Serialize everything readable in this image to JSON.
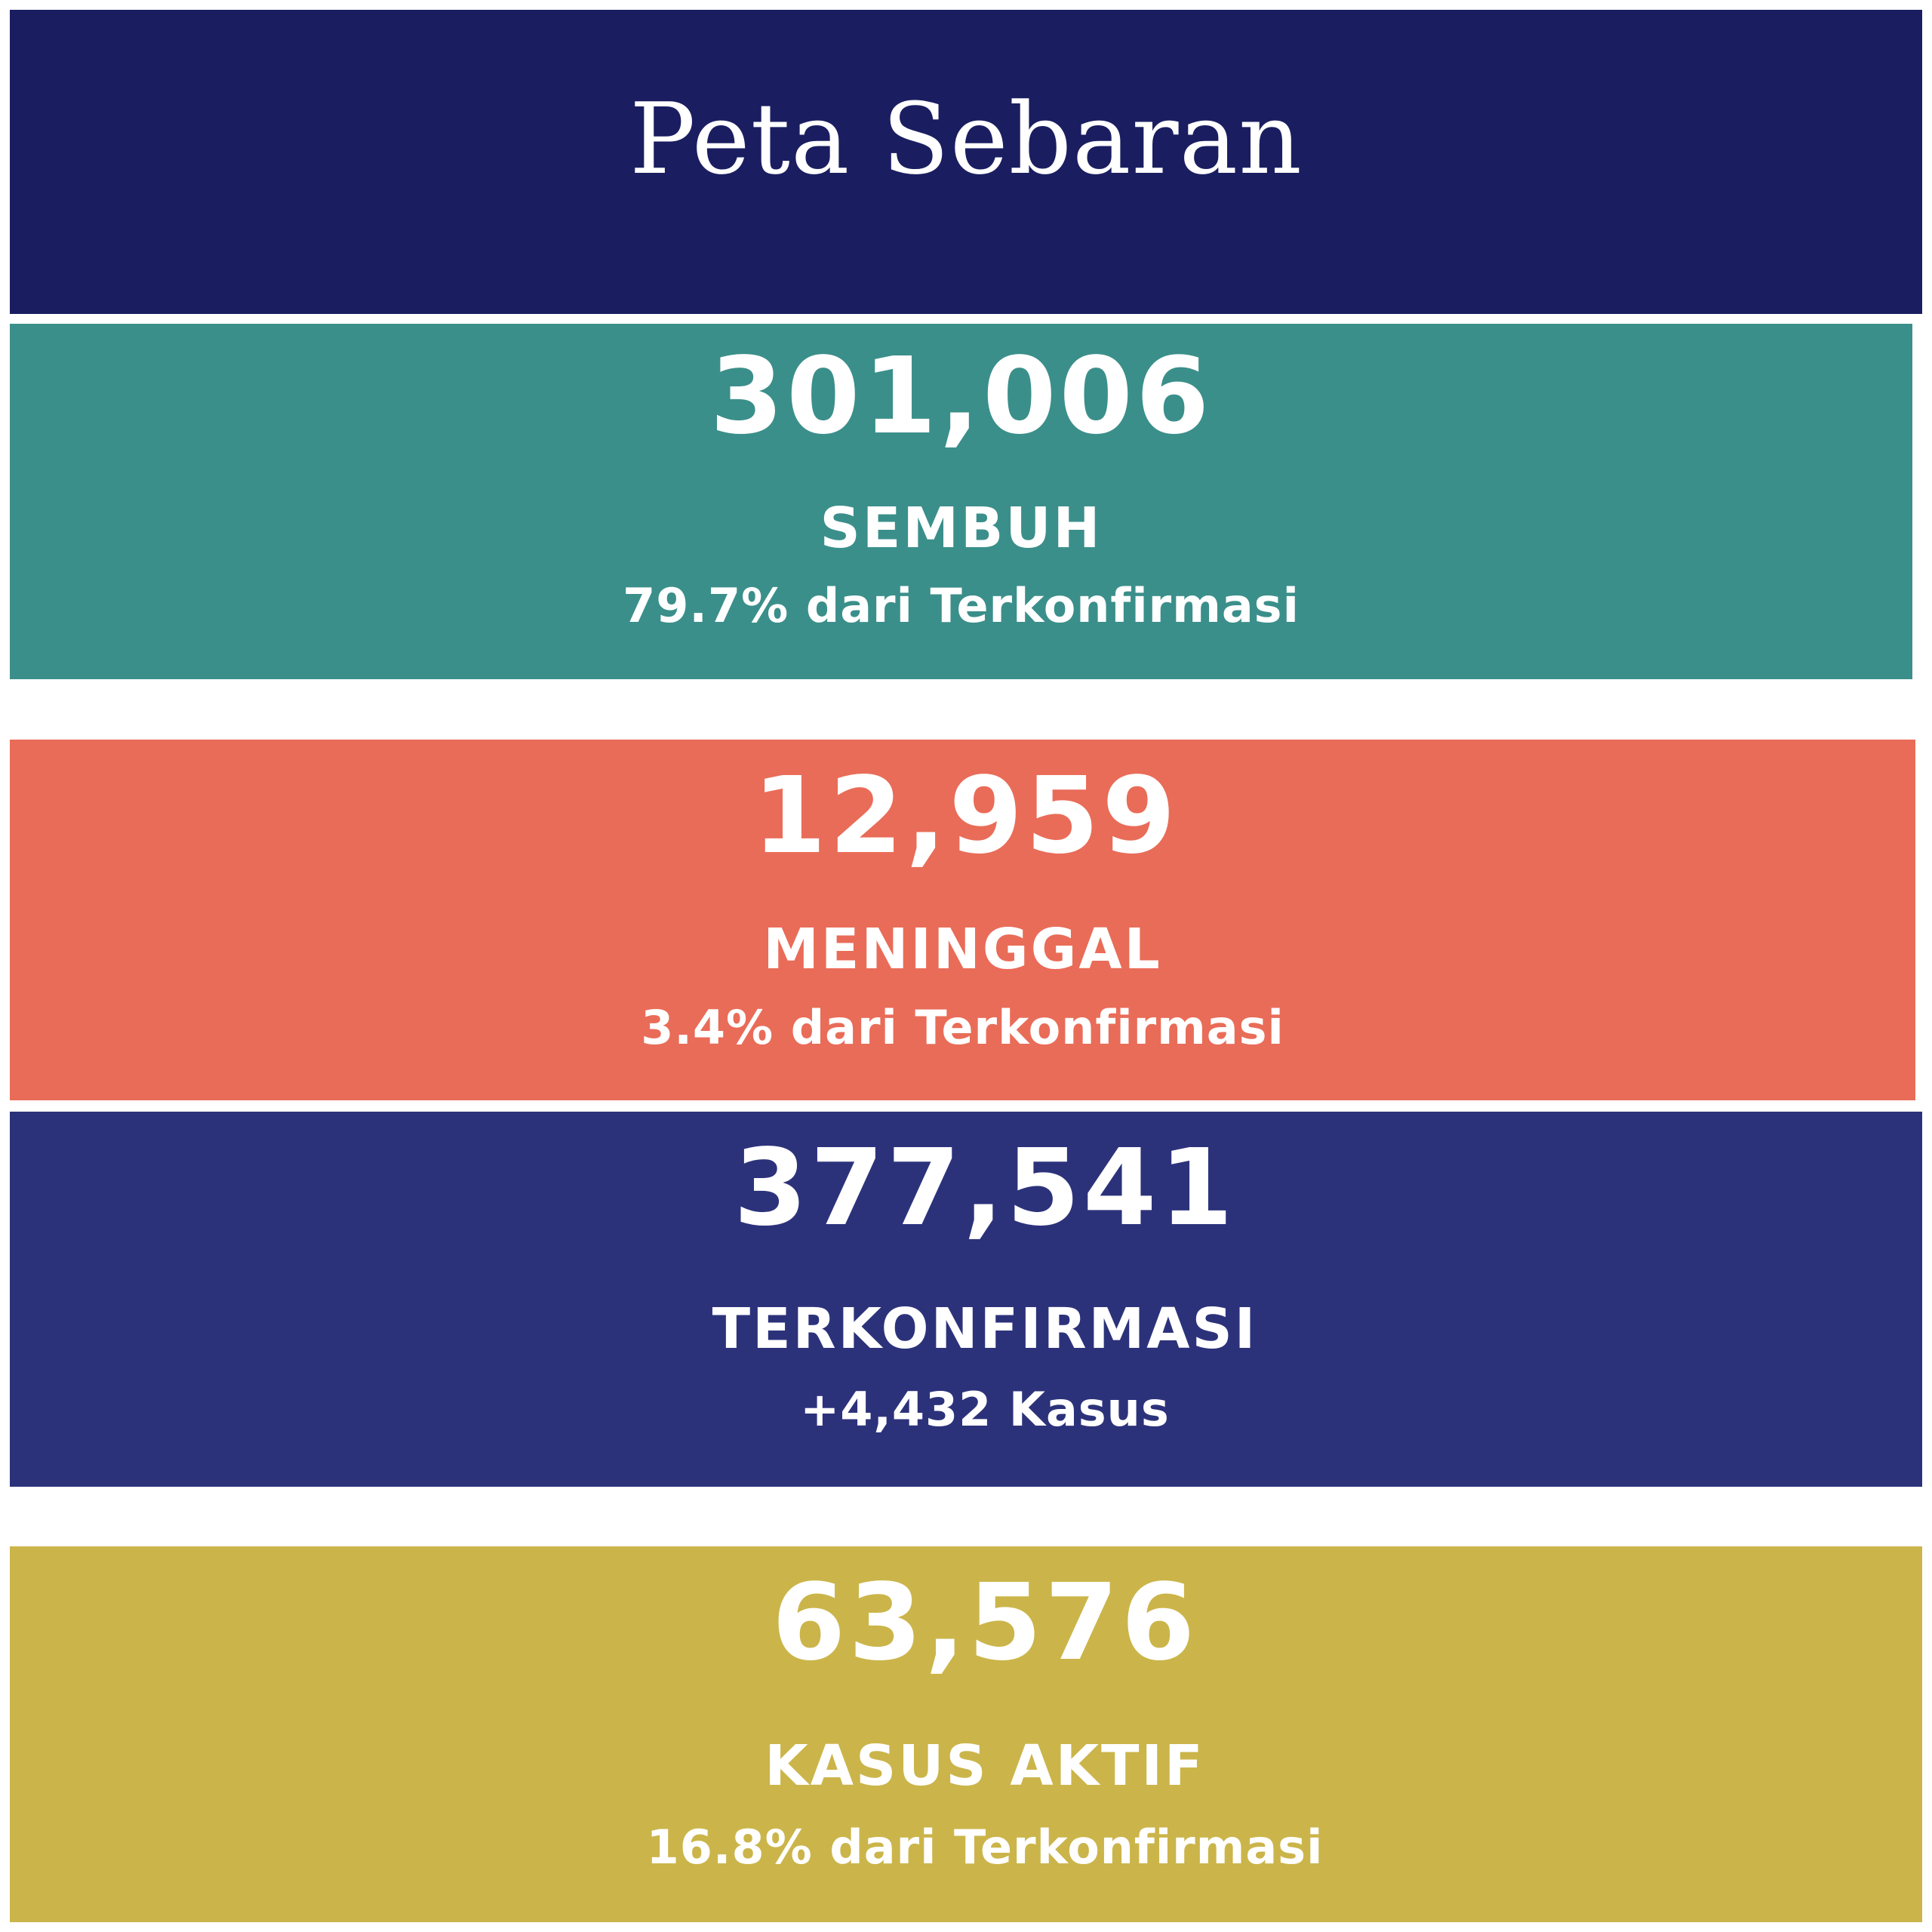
{
  "header": {
    "title": "Peta Sebaran"
  },
  "colors": {
    "header": "#1a1e60",
    "sembuh": "#3b8f8a",
    "meninggal": "#e96c58",
    "terkonfirmasi": "#2c327a",
    "aktif": "#cbb54a"
  },
  "stats": [
    {
      "value": "301,006",
      "label": "SEMBUH",
      "sub": "79.7% dari Terkonfirmasi"
    },
    {
      "value": "12,959",
      "label": "MENINGGAL",
      "sub": "3.4% dari Terkonfirmasi"
    },
    {
      "value": "377,541",
      "label": "TERKONFIRMASI",
      "sub": "+4,432 Kasus"
    },
    {
      "value": "63,576",
      "label": "KASUS AKTIF",
      "sub": "16.8% dari Terkonfirmasi"
    }
  ]
}
